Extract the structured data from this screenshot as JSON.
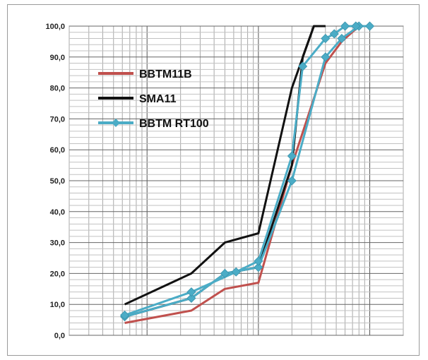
{
  "chart_data": {
    "type": "line",
    "title": "",
    "xlabel": "",
    "ylabel": "",
    "x_scale": "log",
    "ylim": [
      0,
      100
    ],
    "yticks": [
      "0,0",
      "10,0",
      "20,0",
      "30,0",
      "40,0",
      "50,0",
      "60,0",
      "70,0",
      "80,0",
      "90,0",
      "100,0"
    ],
    "grid": true,
    "legend_position": "top-left",
    "series": [
      {
        "name": "BBTM11B",
        "color": "#c0504d",
        "marker": "none",
        "x": [
          0.063,
          0.25,
          0.5,
          1,
          2,
          4,
          5.6,
          8,
          10
        ],
        "y": [
          4,
          8,
          15,
          17,
          55,
          88,
          95,
          100,
          100
        ]
      },
      {
        "name": "SMA11",
        "color": "#111111",
        "marker": "none",
        "x": [
          0.063,
          0.25,
          0.5,
          1,
          2,
          3.15,
          4
        ],
        "y": [
          10,
          20,
          30,
          33,
          80,
          100,
          100
        ]
      },
      {
        "name": "BBTM RT100",
        "color": "#4bacc6",
        "marker": "diamond",
        "x": [
          0.063,
          0.25,
          0.5,
          1,
          2,
          4,
          5.6,
          8,
          10
        ],
        "y": [
          6,
          12,
          20,
          22,
          50,
          90,
          96,
          100,
          100
        ]
      },
      {
        "name": "",
        "color": "#4bacc6",
        "marker": "diamond",
        "x": [
          0.063,
          0.25,
          0.63,
          1,
          2,
          2.5,
          4,
          4.8,
          6,
          7.5
        ],
        "y": [
          6.5,
          14,
          20.5,
          24,
          58,
          87,
          96,
          97.5,
          100,
          100
        ]
      },
      {
        "name": "",
        "color": "#111111",
        "marker": "none",
        "x": [
          0.063,
          0.25,
          0.5,
          1,
          2,
          2.5,
          3.15,
          4
        ],
        "y": [
          6,
          12,
          20,
          22,
          55,
          90,
          100,
          100
        ]
      }
    ]
  }
}
